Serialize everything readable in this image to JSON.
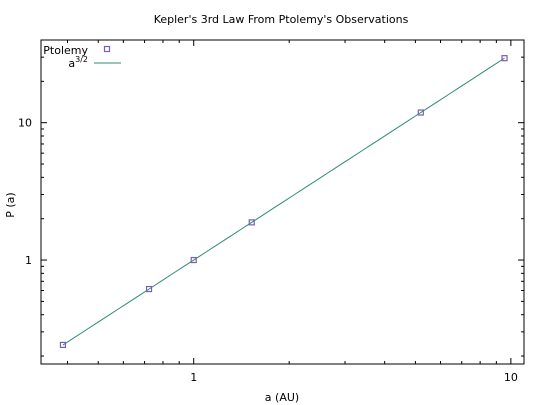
{
  "chart_data": {
    "type": "scatter",
    "title": "Kepler's 3rd Law From Ptolemy's Observations",
    "xlabel": "a (AU)",
    "ylabel": "P (a)",
    "xscale": "log",
    "yscale": "log",
    "xlim": [
      0.33,
      11.0
    ],
    "ylim": [
      0.175,
      40.0
    ],
    "x_ticks": [
      1,
      10
    ],
    "y_ticks": [
      1,
      10
    ],
    "grid": false,
    "legend_position": "top-left",
    "series": [
      {
        "name": "Ptolemy",
        "kind": "points",
        "marker": "square",
        "color": "#7a5fb0",
        "points": [
          {
            "x": 0.387,
            "y": 0.241
          },
          {
            "x": 0.723,
            "y": 0.615
          },
          {
            "x": 1.0,
            "y": 1.0
          },
          {
            "x": 1.524,
            "y": 1.881
          },
          {
            "x": 5.2,
            "y": 11.86
          },
          {
            "x": 9.55,
            "y": 29.5
          }
        ]
      },
      {
        "name": "a",
        "name_superscript": "3/2",
        "kind": "line",
        "color": "#2e8b7a",
        "function": "a^(3/2)",
        "x_range": [
          0.387,
          9.55
        ]
      }
    ]
  }
}
